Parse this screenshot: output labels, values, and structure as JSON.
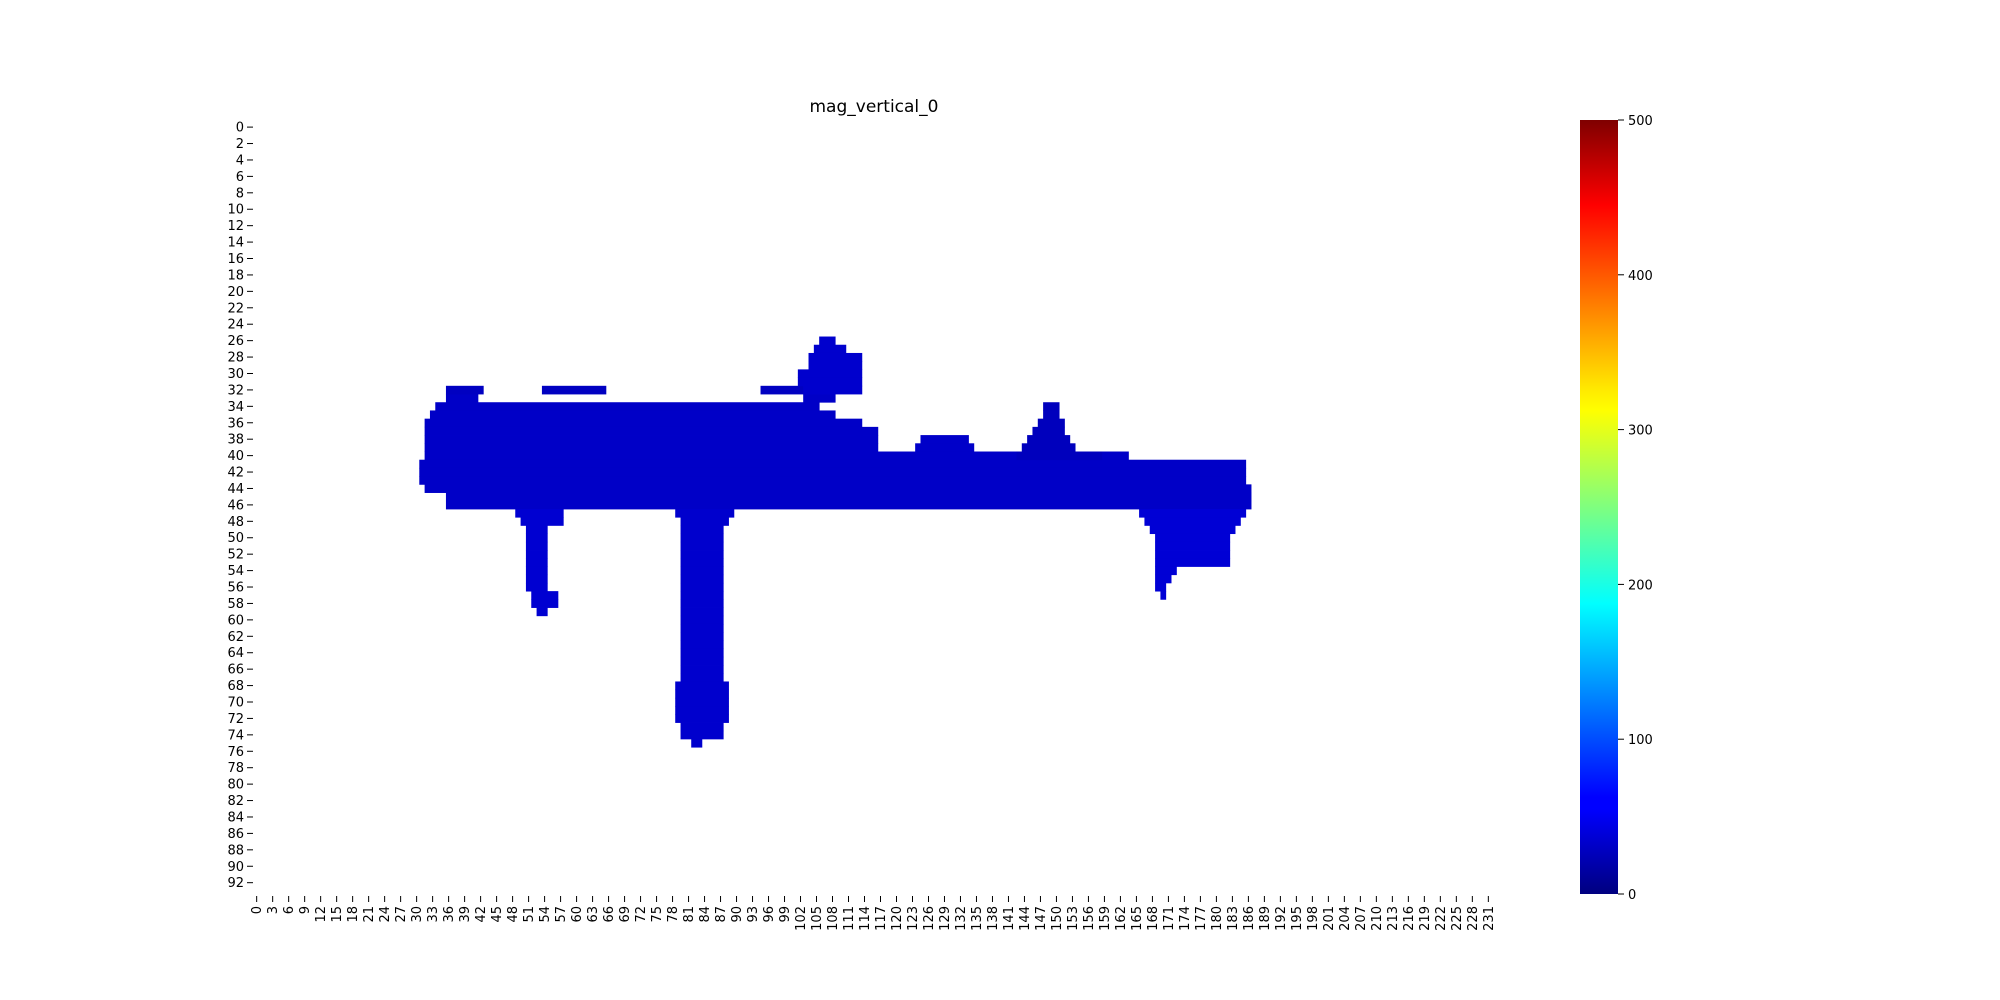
{
  "chart_data": {
    "type": "heatmap",
    "title": "mag_vertical_0",
    "xlabel": "",
    "ylabel": "",
    "n_cols": 232,
    "n_rows": 94,
    "x_tick_step": 3,
    "y_tick_step": 2,
    "x_tick_labels": [
      "0",
      "3",
      "6",
      "9",
      "12",
      "15",
      "18",
      "21",
      "24",
      "27",
      "30",
      "33",
      "36",
      "39",
      "42",
      "45",
      "48",
      "51",
      "54",
      "57",
      "60",
      "63",
      "66",
      "69",
      "72",
      "75",
      "78",
      "81",
      "84",
      "87",
      "90",
      "93",
      "96",
      "99",
      "102",
      "105",
      "108",
      "111",
      "114",
      "117",
      "120",
      "123",
      "126",
      "129",
      "132",
      "135",
      "138",
      "141",
      "144",
      "147",
      "150",
      "153",
      "156",
      "159",
      "162",
      "165",
      "168",
      "171",
      "174",
      "177",
      "180",
      "183",
      "186",
      "189",
      "192",
      "195",
      "198",
      "201",
      "204",
      "207",
      "210",
      "213",
      "216",
      "219",
      "222",
      "225",
      "228",
      "231"
    ],
    "y_tick_labels": [
      "0",
      "2",
      "4",
      "6",
      "8",
      "10",
      "12",
      "14",
      "16",
      "18",
      "20",
      "22",
      "24",
      "26",
      "28",
      "30",
      "32",
      "34",
      "36",
      "38",
      "40",
      "42",
      "44",
      "46",
      "48",
      "50",
      "52",
      "54",
      "56",
      "58",
      "60",
      "62",
      "64",
      "66",
      "68",
      "70",
      "72",
      "74",
      "76",
      "78",
      "80",
      "82",
      "84",
      "86",
      "88",
      "90",
      "92"
    ],
    "colormap": "jet",
    "vmin": 0,
    "vmax": 500,
    "colorbar_ticks": [
      "0",
      "100",
      "200",
      "300",
      "400",
      "500"
    ],
    "colorbar_tick_values": [
      0,
      100,
      200,
      300,
      400,
      500
    ],
    "grid": false,
    "nan_color": "#ffffff",
    "regions": [
      {
        "name": "main-band",
        "rows": [
          [
            33,
            33,
            36,
            41
          ],
          [
            33,
            33,
            103,
            108
          ],
          [
            34,
            34,
            34,
            105
          ],
          [
            35,
            35,
            33,
            108
          ],
          [
            36,
            40,
            32,
            113
          ],
          [
            37,
            39,
            113,
            116
          ],
          [
            40,
            40,
            114,
            163
          ],
          [
            41,
            43,
            31,
            185
          ],
          [
            44,
            44,
            32,
            186
          ],
          [
            45,
            46,
            36,
            186
          ]
        ],
        "value": 35
      },
      {
        "name": "upper-bump-left-top",
        "rows": [
          [
            32,
            32,
            36,
            42
          ],
          [
            32,
            32,
            54,
            65
          ],
          [
            32,
            32,
            95,
            102
          ]
        ],
        "value": 32
      },
      {
        "name": "upper-hump",
        "rows": [
          [
            26,
            26,
            106,
            108
          ],
          [
            27,
            27,
            105,
            110
          ],
          [
            28,
            29,
            104,
            113
          ],
          [
            30,
            31,
            102,
            113
          ],
          [
            32,
            32,
            103,
            113
          ]
        ],
        "value": 38
      },
      {
        "name": "mid-bump",
        "rows": [
          [
            38,
            38,
            125,
            133
          ],
          [
            39,
            39,
            124,
            134
          ],
          [
            40,
            40,
            124,
            135
          ]
        ],
        "value": 36
      },
      {
        "name": "peak-150",
        "rows": [
          [
            34,
            35,
            148,
            150
          ],
          [
            36,
            36,
            147,
            151
          ],
          [
            37,
            37,
            146,
            151
          ],
          [
            38,
            38,
            145,
            152
          ],
          [
            39,
            39,
            144,
            153
          ],
          [
            40,
            40,
            143,
            158
          ]
        ],
        "value": 30
      },
      {
        "name": "stub-left",
        "rows": [
          [
            47,
            47,
            49,
            57
          ],
          [
            48,
            48,
            50,
            57
          ],
          [
            49,
            56,
            51,
            54
          ],
          [
            57,
            58,
            52,
            56
          ],
          [
            59,
            59,
            53,
            54
          ]
        ],
        "value": 40
      },
      {
        "name": "stub-center",
        "rows": [
          [
            47,
            47,
            79,
            89
          ],
          [
            48,
            48,
            80,
            88
          ],
          [
            49,
            67,
            80,
            87
          ],
          [
            68,
            72,
            79,
            88
          ],
          [
            73,
            74,
            80,
            87
          ],
          [
            75,
            75,
            82,
            83
          ]
        ],
        "value": 38
      },
      {
        "name": "stub-right",
        "rows": [
          [
            47,
            47,
            166,
            185
          ],
          [
            48,
            48,
            167,
            184
          ],
          [
            49,
            49,
            168,
            183
          ],
          [
            50,
            53,
            169,
            182
          ],
          [
            54,
            54,
            169,
            172
          ],
          [
            55,
            55,
            169,
            171
          ],
          [
            56,
            56,
            169,
            170
          ],
          [
            57,
            57,
            170,
            170
          ]
        ],
        "value": 42
      }
    ]
  }
}
